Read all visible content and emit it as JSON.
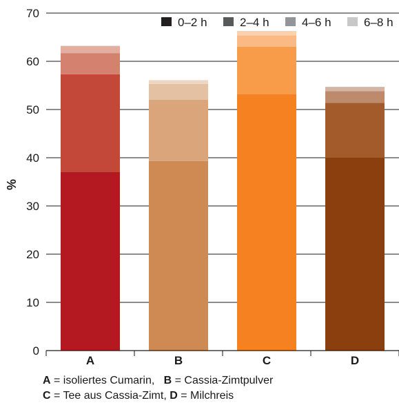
{
  "chart_data": {
    "type": "bar",
    "stacked": true,
    "ylabel": "%",
    "xlabel": "",
    "title": "",
    "ylim": [
      0,
      70
    ],
    "yticks": [
      0,
      10,
      20,
      30,
      40,
      50,
      60,
      70
    ],
    "grid": "horizontal",
    "legend_position": "top-right",
    "legend": [
      "0–2 h",
      "2–4 h",
      "4–6 h",
      "6–8 h"
    ],
    "legend_colors": [
      "#231f20",
      "#58595b",
      "#939598",
      "#c7c8ca"
    ],
    "categories": [
      "A",
      "B",
      "C",
      "D"
    ],
    "series": [
      {
        "name": "0–2 h",
        "values": [
          37.0,
          39.3,
          53.2,
          40.0
        ]
      },
      {
        "name": "2–4 h",
        "values": [
          20.3,
          12.7,
          9.8,
          11.4
        ]
      },
      {
        "name": "4–6 h",
        "values": [
          4.4,
          3.3,
          2.4,
          2.4
        ]
      },
      {
        "name": "6–8 h",
        "values": [
          1.5,
          0.8,
          0.9,
          0.9
        ]
      }
    ],
    "bar_colors": [
      [
        "#b41921",
        "#c4483a",
        "#d4826f",
        "#e3ad9f"
      ],
      [
        "#cf8a54",
        "#daa57a",
        "#e5c1a4",
        "#eed6c3"
      ],
      [
        "#f58120",
        "#f89c4a",
        "#fbba83",
        "#fcd1ad"
      ],
      [
        "#8b3e0e",
        "#a35b2c",
        "#bd8a6b",
        "#d4b5a1"
      ]
    ]
  },
  "caption": {
    "line1": [
      {
        "key": "A",
        "text": " = isoliertes Cumarin,   "
      },
      {
        "key": "B",
        "text": " = Cassia-Zimtpulver"
      }
    ],
    "line2": [
      {
        "key": "C",
        "text": " = Tee aus Cassia-Zimt, "
      },
      {
        "key": "D",
        "text": " = Milchreis"
      }
    ]
  }
}
